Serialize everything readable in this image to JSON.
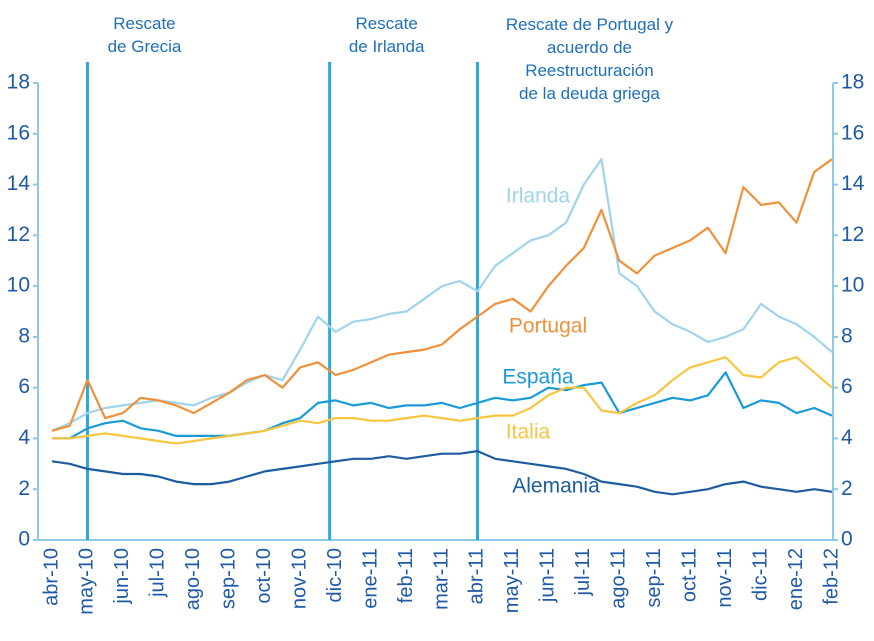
{
  "chart_data": {
    "type": "line",
    "categories": [
      "abr-10",
      null,
      "may-10",
      null,
      "jun-10",
      null,
      "jul-10",
      null,
      "ago-10",
      null,
      "sep-10",
      null,
      "oct-10",
      null,
      "nov-10",
      null,
      "dic-10",
      null,
      "ene-11",
      null,
      "feb-11",
      null,
      "mar-11",
      null,
      "abr-11",
      null,
      "may-11",
      null,
      "jun-11",
      null,
      "jul-11",
      null,
      "ago-11",
      null,
      "sep-11",
      null,
      "oct-11",
      null,
      "nov-11",
      null,
      "dic-11",
      null,
      "ene-12",
      null,
      "feb-12"
    ],
    "series": [
      {
        "name": "Irlanda",
        "color": "#9fd4ec",
        "values": [
          4.3,
          4.6,
          5.0,
          5.2,
          5.3,
          5.4,
          5.5,
          5.4,
          5.3,
          5.6,
          5.8,
          6.2,
          6.5,
          6.3,
          7.5,
          8.8,
          8.2,
          8.6,
          8.7,
          8.9,
          9.0,
          9.5,
          10.0,
          10.2,
          9.8,
          10.8,
          11.3,
          11.8,
          12.0,
          12.5,
          14.0,
          15.0,
          10.5,
          10.0,
          9.0,
          8.5,
          8.2,
          7.8,
          8.0,
          8.3,
          9.3,
          8.8,
          8.5,
          8.0,
          7.4
        ]
      },
      {
        "name": "Portugal",
        "color": "#f0913a",
        "values": [
          4.3,
          4.5,
          6.3,
          4.8,
          5.0,
          5.6,
          5.5,
          5.3,
          5.0,
          5.4,
          5.8,
          6.3,
          6.5,
          6.0,
          6.8,
          7.0,
          6.5,
          6.7,
          7.0,
          7.3,
          7.4,
          7.5,
          7.7,
          8.3,
          8.8,
          9.3,
          9.5,
          9.0,
          10.0,
          10.8,
          11.5,
          13.0,
          11.0,
          10.5,
          11.2,
          11.5,
          11.8,
          12.3,
          11.3,
          13.9,
          13.2,
          13.3,
          12.5,
          14.5,
          15.0
        ]
      },
      {
        "name": "España",
        "color": "#1a9ad8",
        "values": [
          4.0,
          4.0,
          4.4,
          4.6,
          4.7,
          4.4,
          4.3,
          4.1,
          4.1,
          4.1,
          4.1,
          4.2,
          4.3,
          4.6,
          4.8,
          5.4,
          5.5,
          5.3,
          5.4,
          5.2,
          5.3,
          5.3,
          5.4,
          5.2,
          5.4,
          5.6,
          5.5,
          5.6,
          6.0,
          5.9,
          6.1,
          6.2,
          5.0,
          5.2,
          5.4,
          5.6,
          5.5,
          5.7,
          6.6,
          5.2,
          5.5,
          5.4,
          5.0,
          5.2,
          4.9
        ]
      },
      {
        "name": "Italia",
        "color": "#f7c641",
        "values": [
          4.0,
          4.0,
          4.1,
          4.2,
          4.1,
          4.0,
          3.9,
          3.8,
          3.9,
          4.0,
          4.1,
          4.2,
          4.3,
          4.5,
          4.7,
          4.6,
          4.8,
          4.8,
          4.7,
          4.7,
          4.8,
          4.9,
          4.8,
          4.7,
          4.8,
          4.9,
          4.9,
          5.2,
          5.7,
          6.0,
          6.0,
          5.1,
          5.0,
          5.4,
          5.7,
          6.3,
          6.8,
          7.0,
          7.2,
          6.5,
          6.4,
          7.0,
          7.2,
          6.6,
          6.0
        ]
      },
      {
        "name": "Alemania",
        "color": "#1d5d9f",
        "values": [
          3.1,
          3.0,
          2.8,
          2.7,
          2.6,
          2.6,
          2.5,
          2.3,
          2.2,
          2.2,
          2.3,
          2.5,
          2.7,
          2.8,
          2.9,
          3.0,
          3.1,
          3.2,
          3.2,
          3.3,
          3.2,
          3.3,
          3.4,
          3.4,
          3.5,
          3.2,
          3.1,
          3.0,
          2.9,
          2.8,
          2.6,
          2.3,
          2.2,
          2.1,
          1.9,
          1.8,
          1.9,
          2.0,
          2.2,
          2.3,
          2.1,
          2.0,
          1.9,
          2.0,
          1.9
        ]
      }
    ],
    "annotations": [
      {
        "at": "may-10",
        "lines": [
          "Rescate",
          "de Grecia"
        ]
      },
      {
        "at": "dic-10",
        "lines": [
          "Rescate",
          "de Irlanda"
        ]
      },
      {
        "at": "abr-11",
        "lines": [
          "Rescate de Portugal y",
          "acuerdo de",
          "Reestructuración",
          "de la deuda griega"
        ]
      }
    ],
    "ylim": [
      0,
      18
    ],
    "yticks": [
      0,
      2,
      4,
      6,
      8,
      10,
      12,
      14,
      16,
      18
    ],
    "y2lim": [
      0,
      18
    ],
    "y2ticks": [
      0,
      2,
      4,
      6,
      8,
      10,
      12,
      14,
      16,
      18
    ],
    "event_line_color": "#2aa8dc"
  }
}
